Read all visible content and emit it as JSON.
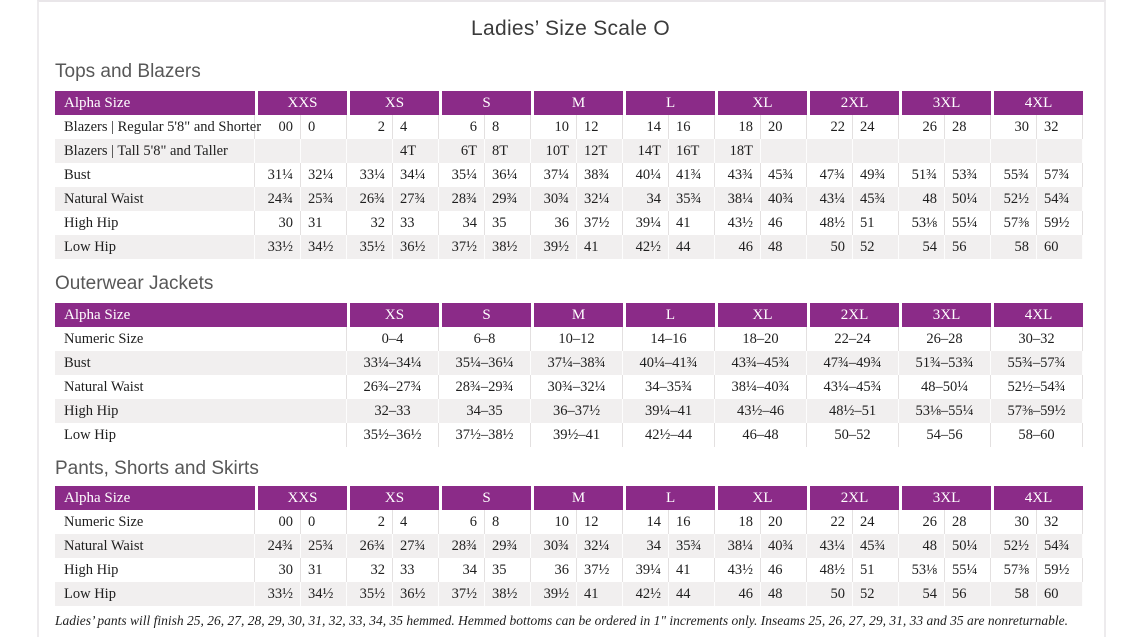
{
  "page": {
    "title": "Ladies’ Size Scale O"
  },
  "colors": {
    "header_purple": "#8b2b88",
    "row_stripe": "#f1efef"
  },
  "tables": [
    {
      "heading": "Tops and Blazers",
      "header_label": "Alpha Size",
      "paired": true,
      "label_col_width": 200,
      "columns": [
        "XXS",
        "XS",
        "S",
        "M",
        "L",
        "XL",
        "2XL",
        "3XL",
        "4XL"
      ],
      "rows": [
        {
          "label": "Blazers | Regular 5'8\" and Shorter",
          "values": [
            [
              "00",
              "0"
            ],
            [
              "2",
              "4"
            ],
            [
              "6",
              "8"
            ],
            [
              "10",
              "12"
            ],
            [
              "14",
              "16"
            ],
            [
              "18",
              "20"
            ],
            [
              "22",
              "24"
            ],
            [
              "26",
              "28"
            ],
            [
              "30",
              "32"
            ]
          ]
        },
        {
          "label": "Blazers | Tall 5'8\" and Taller",
          "values": [
            [
              "",
              ""
            ],
            [
              "",
              "4T"
            ],
            [
              "6T",
              "8T"
            ],
            [
              "10T",
              "12T"
            ],
            [
              "14T",
              "16T"
            ],
            [
              "18T",
              ""
            ],
            [
              "",
              ""
            ],
            [
              "",
              ""
            ],
            [
              "",
              ""
            ]
          ]
        },
        {
          "label": "Bust",
          "values": [
            [
              "31¼",
              "32¼"
            ],
            [
              "33¼",
              "34¼"
            ],
            [
              "35¼",
              "36¼"
            ],
            [
              "37¼",
              "38¾"
            ],
            [
              "40¼",
              "41¾"
            ],
            [
              "43¾",
              "45¾"
            ],
            [
              "47¾",
              "49¾"
            ],
            [
              "51¾",
              "53¾"
            ],
            [
              "55¾",
              "57¾"
            ]
          ]
        },
        {
          "label": "Natural Waist",
          "values": [
            [
              "24¾",
              "25¾"
            ],
            [
              "26¾",
              "27¾"
            ],
            [
              "28¾",
              "29¾"
            ],
            [
              "30¾",
              "32¼"
            ],
            [
              "34",
              "35¾"
            ],
            [
              "38¼",
              "40¾"
            ],
            [
              "43¼",
              "45¾"
            ],
            [
              "48",
              "50¼"
            ],
            [
              "52½",
              "54¾"
            ]
          ]
        },
        {
          "label": "High Hip",
          "values": [
            [
              "30",
              "31"
            ],
            [
              "32",
              "33"
            ],
            [
              "34",
              "35"
            ],
            [
              "36",
              "37½"
            ],
            [
              "39¼",
              "41"
            ],
            [
              "43½",
              "46"
            ],
            [
              "48½",
              "51"
            ],
            [
              "53⅛",
              "55¼"
            ],
            [
              "57⅜",
              "59½"
            ]
          ]
        },
        {
          "label": "Low Hip",
          "values": [
            [
              "33½",
              "34½"
            ],
            [
              "35½",
              "36½"
            ],
            [
              "37½",
              "38½"
            ],
            [
              "39½",
              "41"
            ],
            [
              "42½",
              "44"
            ],
            [
              "46",
              "48"
            ],
            [
              "50",
              "52"
            ],
            [
              "54",
              "56"
            ],
            [
              "58",
              "60"
            ]
          ]
        }
      ]
    },
    {
      "heading": "Outerwear Jackets",
      "header_label": "Alpha Size",
      "paired": false,
      "label_col_width": 292,
      "columns": [
        "XS",
        "S",
        "M",
        "L",
        "XL",
        "2XL",
        "3XL",
        "4XL"
      ],
      "rows": [
        {
          "label": "Numeric Size",
          "values": [
            "0–4",
            "6–8",
            "10–12",
            "14–16",
            "18–20",
            "22–24",
            "26–28",
            "30–32"
          ]
        },
        {
          "label": "Bust",
          "values": [
            "33¼–34¼",
            "35¼–36¼",
            "37¼–38¾",
            "40¼–41¾",
            "43¾–45¾",
            "47¾–49¾",
            "51¾–53¾",
            "55¾–57¾"
          ]
        },
        {
          "label": "Natural Waist",
          "values": [
            "26¾–27¾",
            "28¾–29¾",
            "30¾–32¼",
            "34–35¾",
            "38¼–40¾",
            "43¼–45¾",
            "48–50¼",
            "52½–54¾"
          ]
        },
        {
          "label": "High Hip",
          "values": [
            "32–33",
            "34–35",
            "36–37½",
            "39¼–41",
            "43½–46",
            "48½–51",
            "53⅛–55¼",
            "57⅜–59½"
          ]
        },
        {
          "label": "Low Hip",
          "values": [
            "35½–36½",
            "37½–38½",
            "39½–41",
            "42½–44",
            "46–48",
            "50–52",
            "54–56",
            "58–60"
          ]
        }
      ]
    },
    {
      "heading": "Pants, Shorts and Skirts",
      "header_label": "Alpha Size",
      "paired": true,
      "label_col_width": 200,
      "columns": [
        "XXS",
        "XS",
        "S",
        "M",
        "L",
        "XL",
        "2XL",
        "3XL",
        "4XL"
      ],
      "rows": [
        {
          "label": "Numeric Size",
          "values": [
            [
              "00",
              "0"
            ],
            [
              "2",
              "4"
            ],
            [
              "6",
              "8"
            ],
            [
              "10",
              "12"
            ],
            [
              "14",
              "16"
            ],
            [
              "18",
              "20"
            ],
            [
              "22",
              "24"
            ],
            [
              "26",
              "28"
            ],
            [
              "30",
              "32"
            ]
          ]
        },
        {
          "label": "Natural Waist",
          "values": [
            [
              "24¾",
              "25¾"
            ],
            [
              "26¾",
              "27¾"
            ],
            [
              "28¾",
              "29¾"
            ],
            [
              "30¾",
              "32¼"
            ],
            [
              "34",
              "35¾"
            ],
            [
              "38¼",
              "40¾"
            ],
            [
              "43¼",
              "45¾"
            ],
            [
              "48",
              "50¼"
            ],
            [
              "52½",
              "54¾"
            ]
          ]
        },
        {
          "label": "High Hip",
          "values": [
            [
              "30",
              "31"
            ],
            [
              "32",
              "33"
            ],
            [
              "34",
              "35"
            ],
            [
              "36",
              "37½"
            ],
            [
              "39¼",
              "41"
            ],
            [
              "43½",
              "46"
            ],
            [
              "48½",
              "51"
            ],
            [
              "53⅛",
              "55¼"
            ],
            [
              "57⅜",
              "59½"
            ]
          ]
        },
        {
          "label": "Low Hip",
          "values": [
            [
              "33½",
              "34½"
            ],
            [
              "35½",
              "36½"
            ],
            [
              "37½",
              "38½"
            ],
            [
              "39½",
              "41"
            ],
            [
              "42½",
              "44"
            ],
            [
              "46",
              "48"
            ],
            [
              "50",
              "52"
            ],
            [
              "54",
              "56"
            ],
            [
              "58",
              "60"
            ]
          ]
        }
      ]
    }
  ],
  "footnote": "Ladies’ pants will finish 25, 26, 27, 28, 29, 30, 31, 32, 33, 34, 35 hemmed. Hemmed bottoms can be ordered in 1\" increments only. Inseams 25, 26, 27, 29, 31, 33 and 35 are nonreturnable."
}
